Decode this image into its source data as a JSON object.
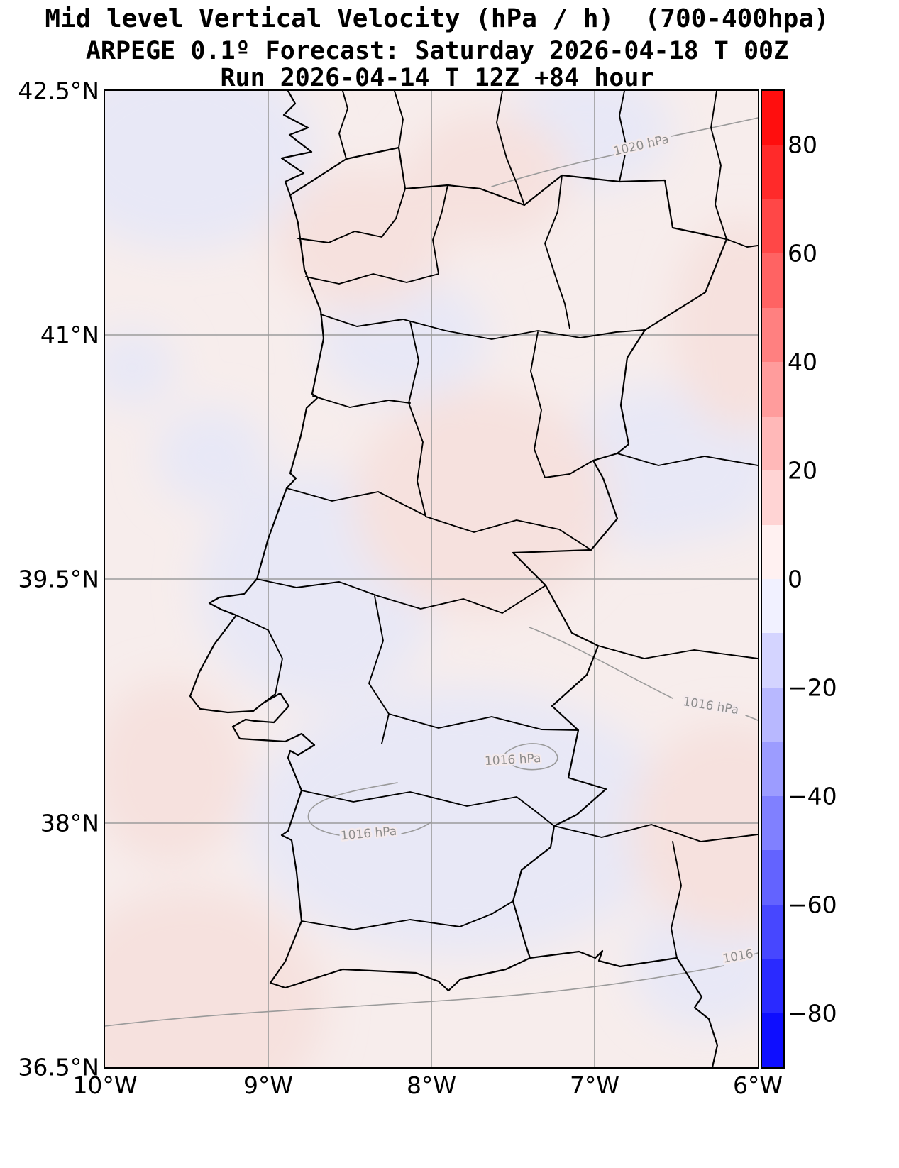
{
  "title": {
    "line1": "Mid level Vertical Velocity (hPa / h)  (700-400hpa)",
    "line2": "ARPEGE 0.1º Forecast: Saturday 2026-04-18 T 00Z",
    "line3": "Run 2026-04-14 T 12Z +84 hour"
  },
  "axes": {
    "y_ticks": [
      "42.5°N",
      "41°N",
      "39.5°N",
      "38°N",
      "36.5°N"
    ],
    "x_ticks": [
      "10°W",
      "9°W",
      "8°W",
      "7°W",
      "6°W"
    ]
  },
  "colorbar": {
    "vmin": -90,
    "vmax": 90,
    "tick_values": [
      80,
      60,
      40,
      20,
      0,
      -20,
      -40,
      -60,
      -80
    ],
    "tick_labels": [
      "80",
      "60",
      "40",
      "20",
      "0",
      "−20",
      "−40",
      "−60",
      "−80"
    ],
    "segment_colors": [
      "#ff0e0e",
      "#ff2a2a",
      "#ff4747",
      "#ff6363",
      "#ff8080",
      "#ff9c9c",
      "#ffb8b8",
      "#ffd4d4",
      "#fff1f1",
      "#f1f1ff",
      "#d4d4ff",
      "#b8b8ff",
      "#9c9cff",
      "#8080ff",
      "#6363ff",
      "#4747ff",
      "#2a2aff",
      "#0e0eff"
    ]
  },
  "contours": [
    {
      "label": "1020 hPa"
    },
    {
      "label": "1016 hPa"
    },
    {
      "label": "1016 hPa"
    },
    {
      "label": "1016 hPa"
    },
    {
      "label": "1016"
    }
  ],
  "map_colors": {
    "weak_positive_shade": "#f7edec",
    "weak_negative_shade": "#e8e8f6",
    "coastline": "#000000",
    "gridline": "#9b9b9b",
    "isobar": "#9a9a9a"
  },
  "chart_data": {
    "type": "heatmap",
    "title": "Mid level Vertical Velocity (hPa / h)  (700-400hpa)",
    "subtitle": "ARPEGE 0.1º Forecast: Saturday 2026-04-18 T 00Z",
    "run_info": "Run 2026-04-14 T 12Z +84 hour",
    "model": "ARPEGE 0.1º",
    "valid_time": "Saturday 2026-04-18 T 00Z",
    "run_time": "2026-04-14 T 12Z",
    "forecast_hour": 84,
    "variable": "Vertical velocity 700-400 hPa (hPa/h)",
    "region": "Portugal and western Iberian Peninsula",
    "x_axis": {
      "ticks": [
        "10°W",
        "9°W",
        "8°W",
        "7°W",
        "6°W"
      ],
      "range_deg_lon": [
        -10,
        -6
      ]
    },
    "y_axis": {
      "ticks": [
        "42.5°N",
        "41°N",
        "39.5°N",
        "38°N",
        "36.5°N"
      ],
      "range_deg_lat": [
        36.5,
        42.5
      ]
    },
    "colorbar": {
      "vmin": -90,
      "vmax": 90,
      "tick_values": [
        80,
        60,
        40,
        20,
        0,
        -20,
        -40,
        -60,
        -80
      ],
      "colormap": "blue-white-red"
    },
    "field_character": "Vertical velocity over the whole domain is weak, roughly between -10 and +10 hPa/h (only the palest pink and palest blue colorbar bands appear on the map)",
    "isobar_labels": [
      "1020 hPa",
      "1016 hPa",
      "1016 hPa",
      "1016 hPa",
      "1016"
    ],
    "gridlines": true,
    "legend_position": "right colorbar"
  }
}
